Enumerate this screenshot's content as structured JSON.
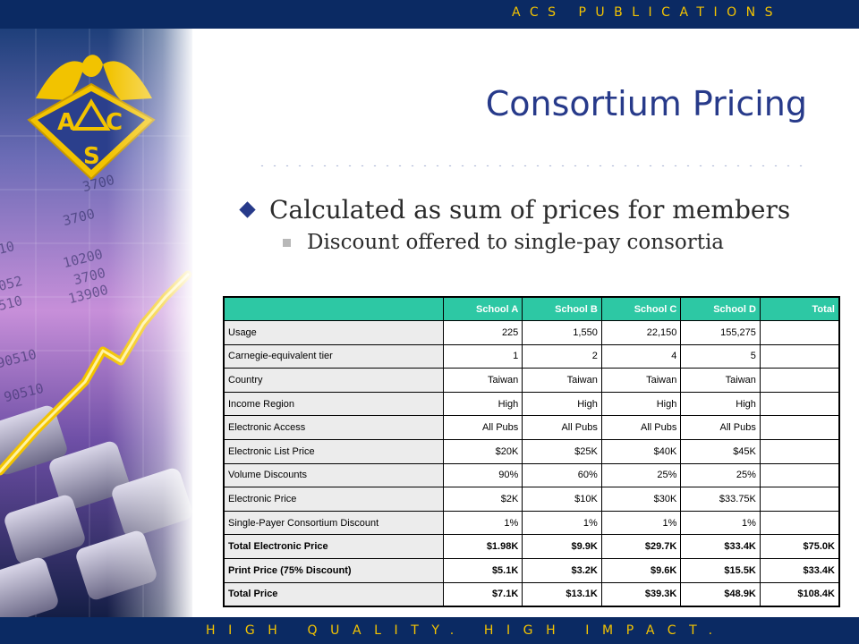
{
  "header": {
    "brand": "ACS PUBLICATIONS"
  },
  "footer": {
    "tagline": "HIGH QUALITY. HIGH IMPACT."
  },
  "logo": {
    "letters": [
      "A",
      "C",
      "S"
    ]
  },
  "side_numbers": [
    "3700",
    "3700",
    "10200",
    "3700",
    "13900",
    "90510",
    "90510",
    "052",
    "510",
    "10"
  ],
  "slide": {
    "title": "Consortium Pricing",
    "bullet_main": "Calculated as sum of prices for members",
    "bullet_sub": "Discount offered to single-pay consortia"
  },
  "table": {
    "columns": [
      "",
      "School A",
      "School B",
      "School C",
      "School D",
      "Total"
    ],
    "rows": [
      {
        "label": "Usage",
        "values": [
          "225",
          "1,550",
          "22,150",
          "155,275",
          ""
        ]
      },
      {
        "label": "Carnegie-equivalent tier",
        "values": [
          "1",
          "2",
          "4",
          "5",
          ""
        ]
      },
      {
        "label": "Country",
        "values": [
          "Taiwan",
          "Taiwan",
          "Taiwan",
          "Taiwan",
          ""
        ]
      },
      {
        "label": "Income Region",
        "values": [
          "High",
          "High",
          "High",
          "High",
          ""
        ]
      },
      {
        "label": "Electronic Access",
        "values": [
          "All Pubs",
          "All Pubs",
          "All Pubs",
          "All Pubs",
          ""
        ]
      },
      {
        "label": "Electronic List Price",
        "values": [
          "$20K",
          "$25K",
          "$40K",
          "$45K",
          ""
        ]
      },
      {
        "label": "Volume Discounts",
        "values": [
          "90%",
          "60%",
          "25%",
          "25%",
          ""
        ]
      },
      {
        "label": "Electronic Price",
        "values": [
          "$2K",
          "$10K",
          "$30K",
          "$33.75K",
          ""
        ]
      },
      {
        "label": "Single-Payer Consortium Discount",
        "values": [
          "1%",
          "1%",
          "1%",
          "1%",
          ""
        ]
      },
      {
        "label": "Total Electronic Price",
        "values": [
          "$1.98K",
          "$9.9K",
          "$29.7K",
          "$33.4K",
          "$75.0K"
        ],
        "bold": true
      },
      {
        "label": "Print Price (75% Discount)",
        "values": [
          "$5.1K",
          "$3.2K",
          "$9.6K",
          "$15.5K",
          "$33.4K"
        ],
        "bold": true
      },
      {
        "label": "Total Price",
        "values": [
          "$7.1K",
          "$13.1K",
          "$39.3K",
          "$48.9K",
          "$108.4K"
        ],
        "bold": true
      }
    ]
  },
  "colors": {
    "bar": "#0b2a63",
    "bar_text": "#f5c400",
    "title": "#273a8a",
    "table_header": "#2dc8a4",
    "label_cell": "#ececec"
  }
}
